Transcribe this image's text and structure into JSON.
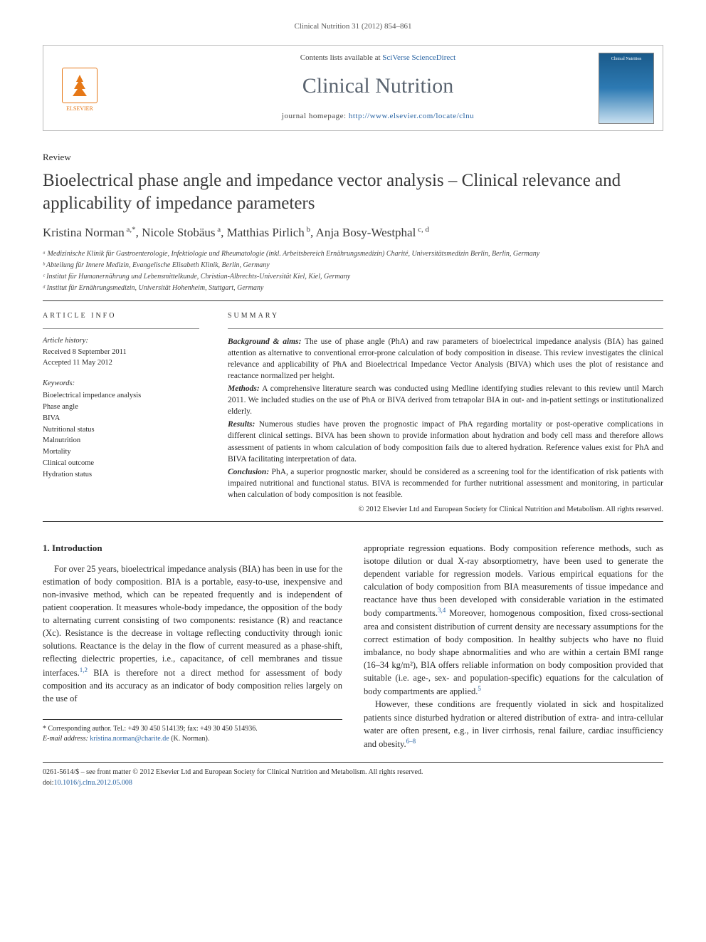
{
  "running_head": "Clinical Nutrition 31 (2012) 854–861",
  "header": {
    "contents_prefix": "Contents lists available at ",
    "contents_link": "SciVerse ScienceDirect",
    "journal_name": "Clinical Nutrition",
    "homepage_prefix": "journal homepage: ",
    "homepage_url": "http://www.elsevier.com/locate/clnu",
    "publisher": "ELSEVIER",
    "cover_label": "Clinical Nutrition"
  },
  "article": {
    "type": "Review",
    "title": "Bioelectrical phase angle and impedance vector analysis – Clinical relevance and applicability of impedance parameters",
    "authors_html": "Kristina Norman<sup> a,*</sup>, Nicole Stobäus<sup> a</sup>, Matthias Pirlich<sup> b</sup>, Anja Bosy-Westphal<sup> c, d</sup>",
    "affiliations": [
      "ᵃ Medizinische Klinik für Gastroenterologie, Infektiologie und Rheumatologie (inkl. Arbeitsbereich Ernährungsmedizin) Charité, Universitätsmedizin Berlin, Berlin, Germany",
      "ᵇ Abteilung für Innere Medizin, Evangelische Elisabeth Klinik, Berlin, Germany",
      "ᶜ Institut für Humanernährung und Lebensmittelkunde, Christian-Albrechts-Universität Kiel, Kiel, Germany",
      "ᵈ Institut für Ernährungsmedizin, Universität Hohenheim, Stuttgart, Germany"
    ]
  },
  "info": {
    "section_label": "ARTICLE INFO",
    "history_label": "Article history:",
    "received": "Received 8 September 2011",
    "accepted": "Accepted 11 May 2012",
    "keywords_label": "Keywords:",
    "keywords": [
      "Bioelectrical impedance analysis",
      "Phase angle",
      "BIVA",
      "Nutritional status",
      "Malnutrition",
      "Mortality",
      "Clinical outcome",
      "Hydration status"
    ]
  },
  "summary": {
    "section_label": "SUMMARY",
    "background_label": "Background & aims:",
    "background": " The use of phase angle (PhA) and raw parameters of bioelectrical impedance analysis (BIA) has gained attention as alternative to conventional error-prone calculation of body composition in disease. This review investigates the clinical relevance and applicability of PhA and Bioelectrical Impedance Vector Analysis (BIVA) which uses the plot of resistance and reactance normalized per height.",
    "methods_label": "Methods:",
    "methods": " A comprehensive literature search was conducted using Medline identifying studies relevant to this review until March 2011. We included studies on the use of PhA or BIVA derived from tetrapolar BIA in out- and in-patient settings or institutionalized elderly.",
    "results_label": "Results:",
    "results": " Numerous studies have proven the prognostic impact of PhA regarding mortality or post-operative complications in different clinical settings. BIVA has been shown to provide information about hydration and body cell mass and therefore allows assessment of patients in whom calculation of body composition fails due to altered hydration. Reference values exist for PhA and BIVA facilitating interpretation of data.",
    "conclusion_label": "Conclusion:",
    "conclusion": " PhA, a superior prognostic marker, should be considered as a screening tool for the identification of risk patients with impaired nutritional and functional status. BIVA is recommended for further nutritional assessment and monitoring, in particular when calculation of body composition is not feasible.",
    "copyright": "© 2012 Elsevier Ltd and European Society for Clinical Nutrition and Metabolism. All rights reserved."
  },
  "body": {
    "heading": "1. Introduction",
    "col1_p1": "For over 25 years, bioelectrical impedance analysis (BIA) has been in use for the estimation of body composition. BIA is a portable, easy-to-use, inexpensive and non-invasive method, which can be repeated frequently and is independent of patient cooperation. It measures whole-body impedance, the opposition of the body to alternating current consisting of two components: resistance (R) and reactance (Xc). Resistance is the decrease in voltage reflecting conductivity through ionic solutions. Reactance is the delay in the flow of current measured as a phase-shift, reflecting dielectric properties, i.e., capacitance, of cell membranes and tissue interfaces.",
    "col1_p1_ref": "1,2",
    "col1_p1_tail": " BIA is therefore not a direct method for assessment of body composition and its accuracy as an indicator of body composition relies largely on the use of",
    "col2_p1": "appropriate regression equations. Body composition reference methods, such as isotope dilution or dual X-ray absorptiometry, have been used to generate the dependent variable for regression models. Various empirical equations for the calculation of body composition from BIA measurements of tissue impedance and reactance have thus been developed with considerable variation in the estimated body compartments.",
    "col2_p1_ref": "3,4",
    "col2_p1_tail": " Moreover, homogenous composition, fixed cross-sectional area and consistent distribution of current density are necessary assumptions for the correct estimation of body composition. In healthy subjects who have no fluid imbalance, no body shape abnormalities and who are within a certain BMI range (16–34 kg/m²), BIA offers reliable information on body composition provided that suitable (i.e. age-, sex- and population-specific) equations for the calculation of body compartments are applied.",
    "col2_p1_ref2": "5",
    "col2_p2": "However, these conditions are frequently violated in sick and hospitalized patients since disturbed hydration or altered distribution of extra- and intra-cellular water are often present, e.g., in liver cirrhosis, renal failure, cardiac insufficiency and obesity.",
    "col2_p2_ref": "6–8"
  },
  "footnote": {
    "corresponding": "* Corresponding author. Tel.: +49 30 450 514139; fax: +49 30 450 514936.",
    "email_label": "E-mail address: ",
    "email": "kristina.norman@charite.de",
    "email_tail": " (K. Norman)."
  },
  "footer": {
    "line1": "0261-5614/$ – see front matter © 2012 Elsevier Ltd and European Society for Clinical Nutrition and Metabolism. All rights reserved.",
    "doi_label": "doi:",
    "doi": "10.1016/j.clnu.2012.05.008"
  }
}
